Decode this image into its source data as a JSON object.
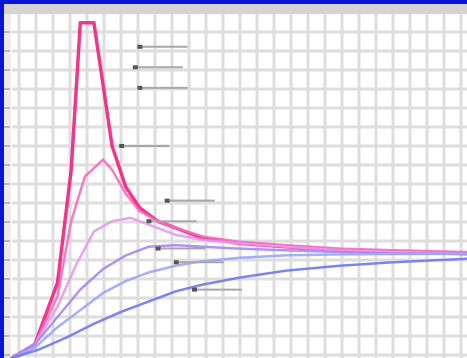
{
  "chart_data": {
    "type": "line",
    "title": "",
    "xlabel": "",
    "ylabel": "",
    "xlim": [
      0,
      100
    ],
    "ylim": [
      0,
      100
    ],
    "grid": true,
    "legend": "none",
    "series": [
      {
        "color": "#f0207e",
        "x": [
          0,
          5,
          10,
          13,
          15,
          18,
          20,
          22,
          25,
          28,
          32,
          36,
          42,
          50,
          60,
          72,
          84,
          100
        ],
        "y": [
          0,
          4,
          22,
          55,
          98,
          98,
          80,
          62,
          50,
          44,
          40,
          38,
          35,
          33.5,
          32.5,
          31.5,
          31,
          30.5
        ]
      },
      {
        "color": "#f56bc0",
        "x": [
          0,
          5,
          10,
          13,
          16,
          20,
          22,
          25,
          28,
          32,
          36,
          42,
          50,
          60,
          72,
          84,
          100
        ],
        "y": [
          0,
          4,
          18,
          40,
          53,
          58,
          55,
          48,
          43,
          40,
          38,
          35.5,
          34,
          33,
          32,
          31.5,
          31
        ]
      },
      {
        "color": "#e79af0",
        "x": [
          0,
          5,
          10,
          14,
          18,
          22,
          26,
          30,
          36,
          42,
          50,
          60,
          72,
          84,
          100
        ],
        "y": [
          0,
          4,
          15,
          27,
          37,
          40,
          41,
          39,
          36,
          34.5,
          33.5,
          32.5,
          31.5,
          31,
          30.5
        ]
      },
      {
        "color": "#a48af2",
        "x": [
          0,
          5,
          10,
          15,
          20,
          25,
          30,
          36,
          42,
          50,
          60,
          72,
          84,
          100
        ],
        "y": [
          0,
          4,
          12,
          20,
          26,
          30,
          32.5,
          33,
          32.5,
          32,
          31.5,
          31,
          30.5,
          30.5
        ]
      },
      {
        "color": "#9aa6f5",
        "x": [
          0,
          5,
          10,
          15,
          20,
          25,
          30,
          36,
          42,
          50,
          60,
          72,
          84,
          100
        ],
        "y": [
          0,
          3,
          9,
          14,
          19,
          22.5,
          25,
          27,
          28.3,
          29.3,
          30,
          30.3,
          30.4,
          30.5
        ]
      },
      {
        "color": "#6f78f0",
        "x": [
          0,
          6,
          12,
          18,
          24,
          30,
          36,
          42,
          50,
          60,
          72,
          84,
          100
        ],
        "y": [
          0,
          2.5,
          6,
          10,
          13.5,
          16.5,
          19.5,
          21.5,
          23.5,
          25.5,
          27,
          28,
          29
        ]
      }
    ],
    "annotations": [
      {
        "x": 28,
        "y": 91,
        "label": ""
      },
      {
        "x": 27,
        "y": 85,
        "label": ""
      },
      {
        "x": 28,
        "y": 79,
        "label": ""
      },
      {
        "x": 24,
        "y": 62,
        "label": ""
      },
      {
        "x": 34,
        "y": 46,
        "label": ""
      },
      {
        "x": 30,
        "y": 40,
        "label": ""
      },
      {
        "x": 32,
        "y": 32,
        "label": ""
      },
      {
        "x": 36,
        "y": 28,
        "label": ""
      },
      {
        "x": 40,
        "y": 20,
        "label": ""
      }
    ]
  }
}
